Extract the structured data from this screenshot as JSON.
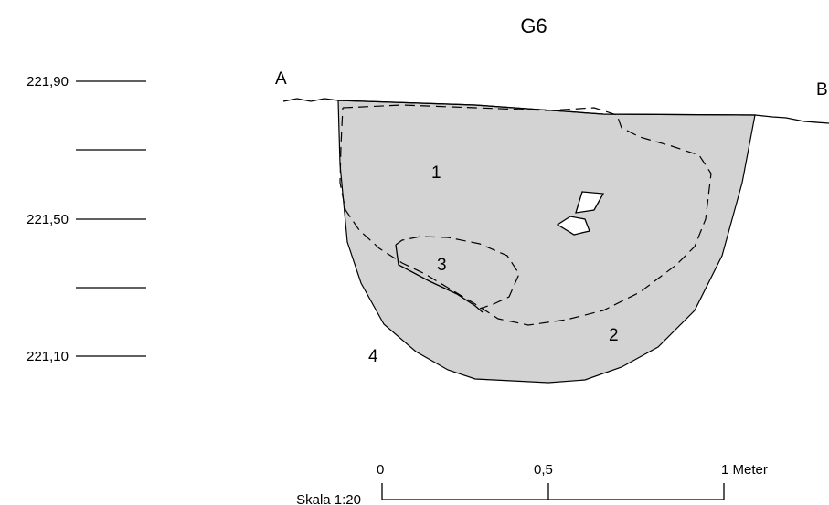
{
  "title": "G6",
  "profile_ends": {
    "start": "A",
    "end": "B"
  },
  "elevation_labels": [
    "221,90",
    "221,50",
    "221,10"
  ],
  "layers": [
    "1",
    "2",
    "3",
    "4"
  ],
  "scale": {
    "label": "Skala 1:20",
    "ticks": [
      "0",
      "0,5",
      "1 Meter"
    ]
  },
  "colors": {
    "fill": "#d3d3d3",
    "line": "#000000",
    "background": "#ffffff"
  }
}
